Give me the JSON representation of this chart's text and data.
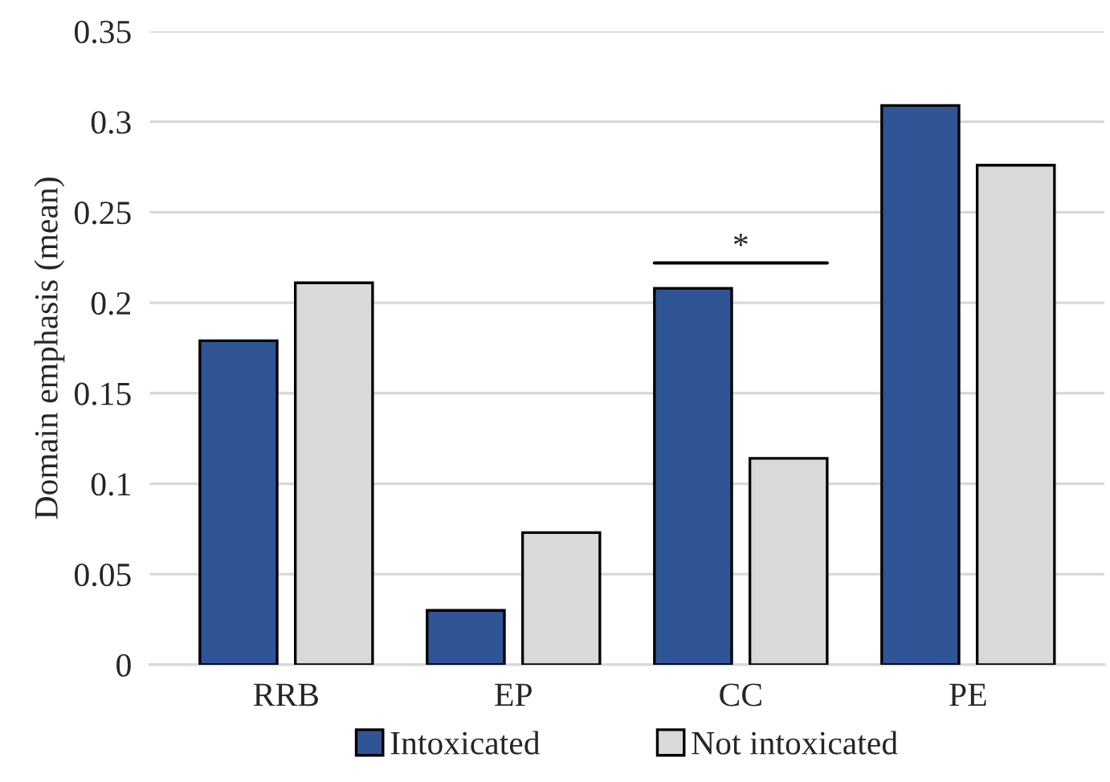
{
  "chart_data": {
    "type": "bar",
    "ylabel": "Domain emphasis (mean)",
    "categories": [
      "RRB",
      "EP",
      "CC",
      "PE"
    ],
    "series": [
      {
        "name": "Intoxicated",
        "color": "#2f5597",
        "values": [
          0.179,
          0.03,
          0.208,
          0.309
        ]
      },
      {
        "name": "Not intoxicated",
        "color": "#d9d9d9",
        "values": [
          0.211,
          0.073,
          0.114,
          0.276
        ]
      }
    ],
    "annotations": [
      "*"
    ],
    "ylim": [
      0,
      0.35
    ],
    "yticks": [
      0,
      0.05,
      0.1,
      0.15,
      0.2,
      0.25,
      0.3,
      0.35
    ],
    "grid": "y",
    "legend": "bottom"
  }
}
